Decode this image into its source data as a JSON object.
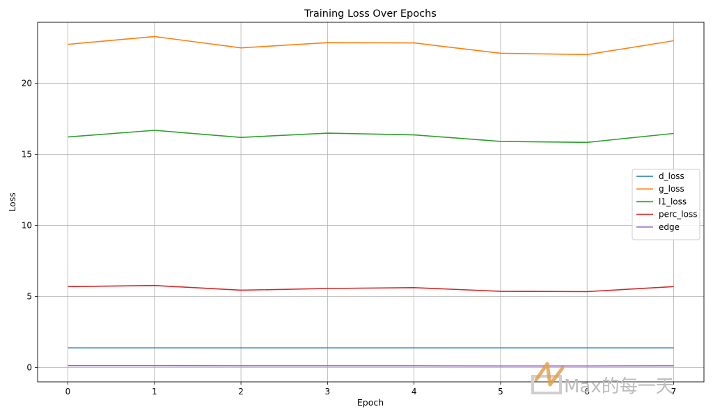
{
  "chart_data": {
    "type": "line",
    "title": "Training Loss Over Epochs",
    "xlabel": "Epoch",
    "ylabel": "Loss",
    "x": [
      0,
      1,
      2,
      3,
      4,
      5,
      6,
      7
    ],
    "xlim": [
      -0.35,
      7.35
    ],
    "ylim": [
      -1.0,
      24.3
    ],
    "xticks": [
      0,
      1,
      2,
      3,
      4,
      5,
      6,
      7
    ],
    "yticks": [
      0,
      5,
      10,
      15,
      20
    ],
    "grid": true,
    "legend_position": "center-right",
    "series": [
      {
        "name": "d_loss",
        "color": "#1f77b4",
        "values": [
          1.39,
          1.39,
          1.39,
          1.39,
          1.39,
          1.39,
          1.39,
          1.39
        ]
      },
      {
        "name": "g_loss",
        "color": "#ff7f0e",
        "values": [
          22.75,
          23.3,
          22.5,
          22.87,
          22.85,
          22.12,
          22.03,
          23.0
        ]
      },
      {
        "name": "l1_loss",
        "color": "#2ca02c",
        "values": [
          16.23,
          16.7,
          16.2,
          16.5,
          16.38,
          15.92,
          15.85,
          16.48
        ]
      },
      {
        "name": "perc_loss",
        "color": "#d62728",
        "values": [
          5.7,
          5.78,
          5.45,
          5.57,
          5.63,
          5.37,
          5.35,
          5.7
        ]
      },
      {
        "name": "edge",
        "color": "#9467bd",
        "values": [
          0.14,
          0.14,
          0.13,
          0.13,
          0.13,
          0.12,
          0.12,
          0.13
        ]
      }
    ]
  },
  "watermark": {
    "text": "Max的每一天",
    "color": "#e0a050"
  }
}
